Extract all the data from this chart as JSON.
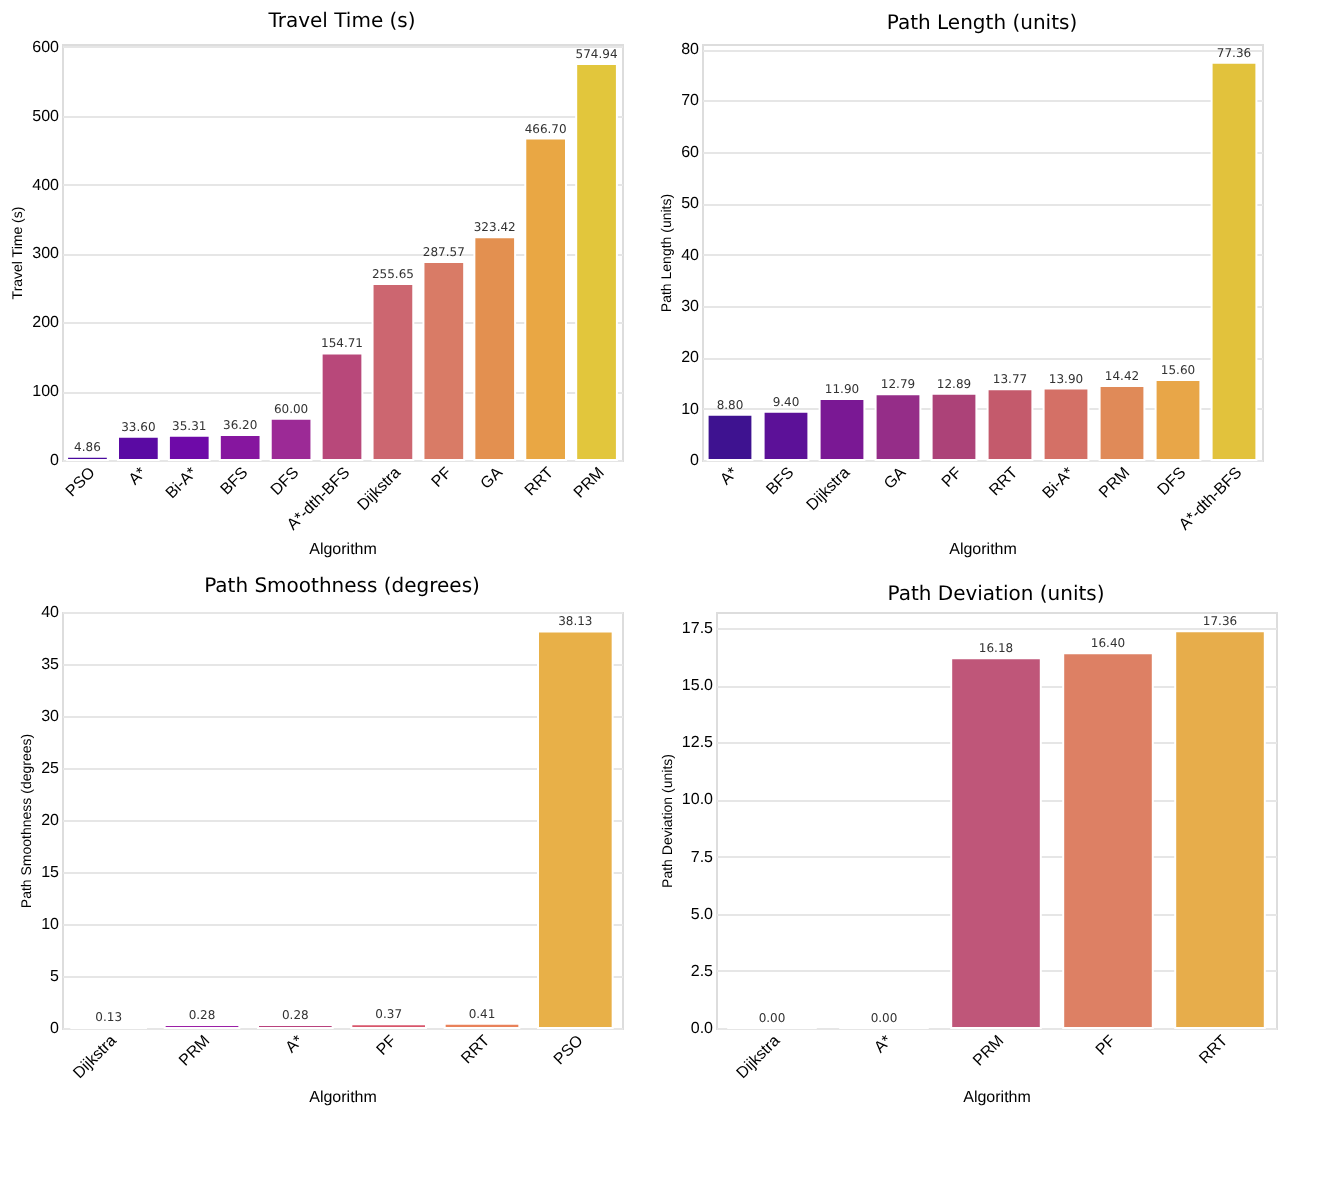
{
  "chart_data": [
    {
      "type": "bar",
      "title": "Travel Time (s)",
      "xlabel": "Algorithm",
      "ylabel": "Travel Time (s)",
      "grid": "y",
      "categories": [
        "PSO",
        "A*",
        "Bi-A*",
        "BFS",
        "DFS",
        "A*-dth-BFS",
        "Dijkstra",
        "PF",
        "GA",
        "RRT",
        "PRM"
      ],
      "values": [
        4.86,
        33.6,
        35.31,
        36.2,
        60.0,
        154.71,
        255.65,
        287.57,
        323.42,
        466.7,
        574.94
      ],
      "value_labels": [
        "4.86",
        "33.60",
        "35.31",
        "36.20",
        "60.00",
        "154.71",
        "255.65",
        "287.57",
        "323.42",
        "466.70",
        "574.94"
      ],
      "colors": [
        "#4a0a9e",
        "#5a0aa3",
        "#6e0aa8",
        "#86169f",
        "#9c2a96",
        "#b8487a",
        "#cc6670",
        "#d97b66",
        "#e39050",
        "#e9a744",
        "#e2c63c"
      ],
      "ylim": [
        0,
        604
      ],
      "yticks": [
        0,
        100,
        200,
        300,
        400,
        500,
        600
      ]
    },
    {
      "type": "bar",
      "title": "Path Length (units)",
      "xlabel": "Algorithm",
      "ylabel": "Path Length (units)",
      "grid": "y",
      "categories": [
        "A*",
        "BFS",
        "Dijkstra",
        "GA",
        "PF",
        "RRT",
        "Bi-A*",
        "PRM",
        "DFS",
        "A*-dth-BFS"
      ],
      "values": [
        8.8,
        9.4,
        11.9,
        12.79,
        12.89,
        13.77,
        13.9,
        14.42,
        15.6,
        77.36
      ],
      "value_labels": [
        "8.80",
        "9.40",
        "11.90",
        "12.79",
        "12.89",
        "13.77",
        "13.90",
        "14.42",
        "15.60",
        "77.36"
      ],
      "colors": [
        "#3e1290",
        "#5c1198",
        "#7a1894",
        "#952d88",
        "#ac4278",
        "#c45a6c",
        "#d47066",
        "#e08a58",
        "#e8a648",
        "#e2c23c"
      ],
      "ylim": [
        0,
        81
      ],
      "yticks": [
        0,
        10,
        20,
        30,
        40,
        50,
        60,
        70,
        80
      ]
    },
    {
      "type": "bar",
      "title": "Path Smoothness (degrees)",
      "xlabel": "Algorithm",
      "ylabel": "Path Smoothness (degrees)",
      "grid": "y",
      "categories": [
        "Dijkstra",
        "PRM",
        "A*",
        "PF",
        "RRT",
        "PSO"
      ],
      "values": [
        0.13,
        0.28,
        0.28,
        0.37,
        0.41,
        38.13
      ],
      "value_labels": [
        "0.13",
        "0.28",
        "0.28",
        "0.37",
        "0.41",
        "38.13"
      ],
      "colors": [
        "#b07cc6",
        "#9b1fa6",
        "#b9427d",
        "#d8566b",
        "#e9825a",
        "#e8b048"
      ],
      "ylim": [
        0,
        40
      ],
      "yticks": [
        0,
        5,
        10,
        15,
        20,
        25,
        30,
        35,
        40
      ]
    },
    {
      "type": "bar",
      "title": "Path Deviation (units)",
      "xlabel": "Algorithm",
      "ylabel": "Path Deviation (units)",
      "grid": "y",
      "categories": [
        "Dijkstra",
        "A*",
        "PRM",
        "PF",
        "RRT"
      ],
      "values": [
        0.0,
        0.0,
        16.18,
        16.4,
        17.36
      ],
      "value_labels": [
        "0.00",
        "0.00",
        "16.18",
        "16.40",
        "17.36"
      ],
      "colors": [
        "#5c1d9a",
        "#8a2a91",
        "#bf5679",
        "#dd8064",
        "#e7ad4b"
      ],
      "ylim": [
        0,
        18.2
      ],
      "yticks": [
        {
          "value": 0,
          "label": "0.0"
        },
        {
          "value": 2.5,
          "label": "2.5"
        },
        {
          "value": 5,
          "label": "5.0"
        },
        {
          "value": 7.5,
          "label": "7.5"
        },
        {
          "value": 10,
          "label": "10.0"
        },
        {
          "value": 12.5,
          "label": "12.5"
        },
        {
          "value": 15,
          "label": "15.0"
        },
        {
          "value": 17.5,
          "label": "17.5"
        }
      ]
    }
  ]
}
